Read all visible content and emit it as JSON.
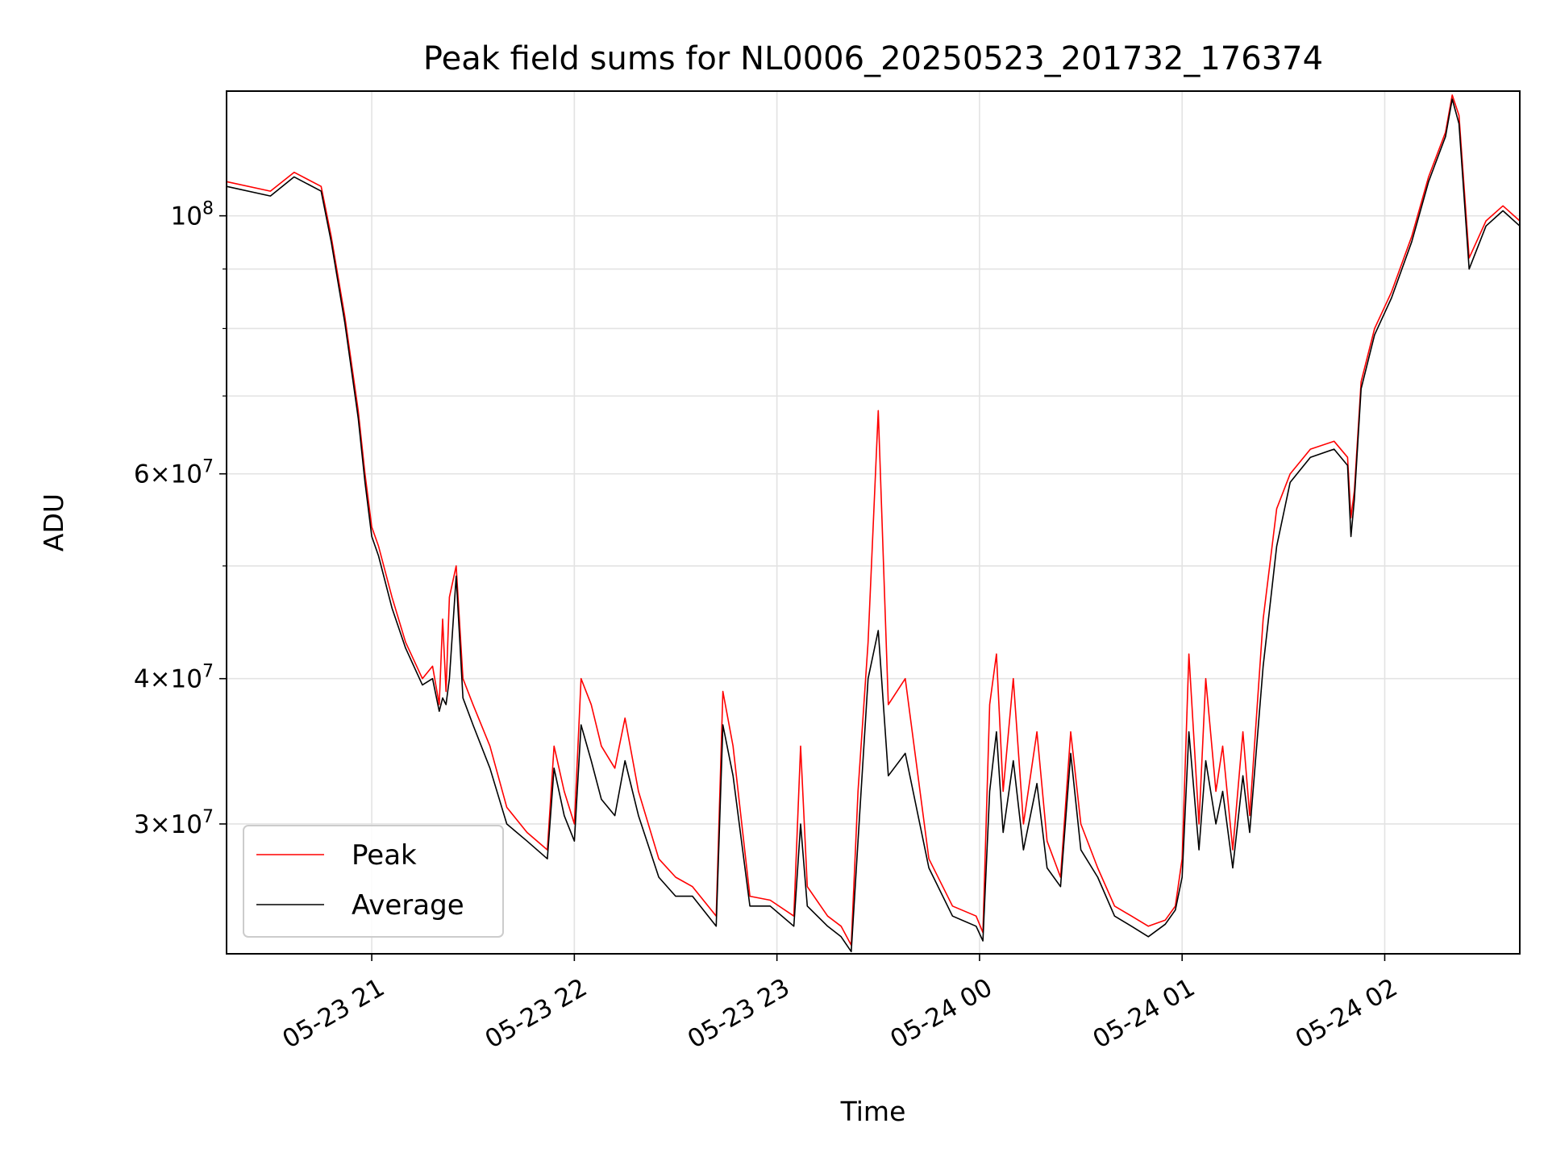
{
  "chart_data": {
    "type": "line",
    "title": "Peak field sums for NL0006_20250523_201732_176374",
    "xlabel": "Time",
    "ylabel": "ADU",
    "y_scale": "log",
    "grid": true,
    "legend_position": "lower-left",
    "x_tick_labels": [
      "05-23 21",
      "05-23 22",
      "05-23 23",
      "05-24 00",
      "05-24 01",
      "05-24 02"
    ],
    "y_major_tick_labels": [
      {
        "value": 100000000,
        "mantissa": "",
        "base": "10",
        "exp": "8"
      },
      {
        "value": 60000000,
        "mantissa": "6",
        "base": "10",
        "exp": "7"
      },
      {
        "value": 40000000,
        "mantissa": "4",
        "base": "10",
        "exp": "7"
      },
      {
        "value": 30000000,
        "mantissa": "3",
        "base": "10",
        "exp": "7"
      }
    ],
    "y_minor_grid_values": [
      90000000,
      80000000,
      70000000,
      50000000
    ],
    "xlim": [
      "2025-05-23 20:17",
      "2025-05-24 02:40"
    ],
    "ylim": [
      23200000,
      128000000
    ],
    "x": [
      "20:17",
      "20:30",
      "20:37",
      "20:45",
      "20:48",
      "20:52",
      "20:56",
      "20:58",
      "21:00",
      "21:02",
      "21:06",
      "21:10",
      "21:15",
      "21:18",
      "21:20",
      "21:21",
      "21:22",
      "21:23",
      "21:25",
      "21:27",
      "21:30",
      "21:35",
      "21:40",
      "21:46",
      "21:52",
      "21:54",
      "21:57",
      "22:00",
      "22:02",
      "22:05",
      "22:08",
      "22:12",
      "22:15",
      "22:19",
      "22:25",
      "22:30",
      "22:35",
      "22:42",
      "22:44",
      "22:47",
      "22:52",
      "22:58",
      "23:05",
      "23:07",
      "23:09",
      "23:15",
      "23:19",
      "23:22",
      "23:24",
      "23:27",
      "23:30",
      "23:33",
      "23:38",
      "23:45",
      "23:52",
      "23:59",
      "00:01",
      "00:03",
      "00:05",
      "00:07",
      "00:10",
      "00:13",
      "00:17",
      "00:20",
      "00:24",
      "00:27",
      "00:30",
      "00:35",
      "00:40",
      "00:45",
      "00:50",
      "00:55",
      "00:58",
      "01:00",
      "01:02",
      "01:05",
      "01:07",
      "01:10",
      "01:12",
      "01:15",
      "01:18",
      "01:20",
      "01:24",
      "01:28",
      "01:32",
      "01:38",
      "01:45",
      "01:49",
      "01:50",
      "01:51",
      "01:53",
      "01:57",
      "02:02",
      "02:08",
      "02:13",
      "02:18",
      "02:20",
      "02:22",
      "02:25",
      "02:30",
      "02:35",
      "02:40"
    ],
    "series": [
      {
        "name": "Peak",
        "color": "#ff0000",
        "values": [
          107000000,
          105000000,
          109000000,
          106000000,
          96000000,
          82000000,
          68000000,
          60000000,
          54000000,
          52000000,
          47000000,
          43000000,
          40000000,
          41000000,
          38000000,
          45000000,
          39000000,
          47000000,
          50000000,
          40000000,
          38000000,
          35000000,
          31000000,
          29500000,
          28500000,
          35000000,
          32000000,
          30000000,
          40000000,
          38000000,
          35000000,
          33500000,
          37000000,
          32000000,
          28000000,
          27000000,
          26500000,
          25000000,
          39000000,
          35000000,
          26000000,
          25800000,
          25000000,
          35000000,
          26500000,
          25000000,
          24500000,
          23600000,
          32000000,
          43000000,
          68000000,
          38000000,
          40000000,
          28000000,
          25500000,
          25000000,
          24200000,
          38000000,
          42000000,
          32000000,
          40000000,
          30000000,
          36000000,
          29000000,
          27000000,
          36000000,
          30000000,
          27500000,
          25500000,
          25000000,
          24500000,
          24800000,
          25500000,
          28000000,
          42000000,
          30000000,
          40000000,
          32000000,
          35000000,
          28500000,
          36000000,
          30500000,
          45000000,
          56000000,
          60000000,
          63000000,
          64000000,
          62000000,
          55000000,
          58000000,
          72000000,
          80000000,
          86000000,
          96000000,
          108000000,
          118000000,
          127000000,
          122000000,
          92000000,
          99000000,
          102000000,
          99000000
        ]
      },
      {
        "name": "Average",
        "color": "#000000",
        "values": [
          106000000,
          104000000,
          108000000,
          105000000,
          95000000,
          81000000,
          67000000,
          59000000,
          53000000,
          51000000,
          46000000,
          42500000,
          39500000,
          40000000,
          37500000,
          38500000,
          38000000,
          40000000,
          49000000,
          38500000,
          36500000,
          33500000,
          30000000,
          29000000,
          28000000,
          33500000,
          30500000,
          29000000,
          36500000,
          34000000,
          31500000,
          30500000,
          34000000,
          30500000,
          27000000,
          26000000,
          26000000,
          24500000,
          36500000,
          33000000,
          25500000,
          25500000,
          24500000,
          30000000,
          25500000,
          24500000,
          24000000,
          23300000,
          29000000,
          40000000,
          44000000,
          33000000,
          34500000,
          27500000,
          25000000,
          24500000,
          23800000,
          32000000,
          36000000,
          29500000,
          34000000,
          28500000,
          32500000,
          27500000,
          26500000,
          34500000,
          28500000,
          27000000,
          25000000,
          24500000,
          24000000,
          24600000,
          25300000,
          27000000,
          36000000,
          28500000,
          34000000,
          30000000,
          32000000,
          27500000,
          33000000,
          29500000,
          41000000,
          52000000,
          59000000,
          62000000,
          63000000,
          61000000,
          53000000,
          57000000,
          71000000,
          79000000,
          85000000,
          95000000,
          107000000,
          117000000,
          126000000,
          120000000,
          90000000,
          98000000,
          101000000,
          98000000
        ]
      }
    ]
  }
}
